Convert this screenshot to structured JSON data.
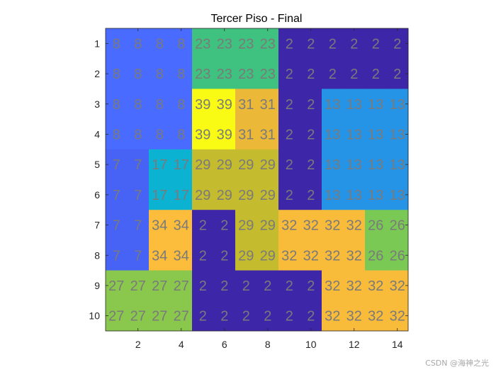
{
  "chart_data": {
    "type": "heatmap",
    "title": "Tercer Piso - Final",
    "x": [
      1,
      2,
      3,
      4,
      5,
      6,
      7,
      8,
      9,
      10,
      11,
      12,
      13,
      14
    ],
    "y": [
      1,
      2,
      3,
      4,
      5,
      6,
      7,
      8,
      9,
      10
    ],
    "xticks": [
      2,
      4,
      6,
      8,
      10,
      12,
      14
    ],
    "yticks": [
      1,
      2,
      3,
      4,
      5,
      6,
      7,
      8,
      9,
      10
    ],
    "xlim": [
      0.5,
      14.5
    ],
    "ylim": [
      0.5,
      10.5
    ],
    "y_direction": "reversed",
    "grid": false,
    "colormap": "parula",
    "values": [
      [
        8,
        8,
        8,
        8,
        23,
        23,
        23,
        23,
        2,
        2,
        2,
        2,
        2,
        2
      ],
      [
        8,
        8,
        8,
        8,
        23,
        23,
        23,
        23,
        2,
        2,
        2,
        2,
        2,
        2
      ],
      [
        8,
        8,
        8,
        8,
        39,
        39,
        31,
        31,
        2,
        2,
        13,
        13,
        13,
        13
      ],
      [
        8,
        8,
        8,
        8,
        39,
        39,
        31,
        31,
        2,
        2,
        13,
        13,
        13,
        13
      ],
      [
        7,
        7,
        17,
        17,
        29,
        29,
        29,
        29,
        2,
        2,
        13,
        13,
        13,
        13
      ],
      [
        7,
        7,
        17,
        17,
        29,
        29,
        29,
        29,
        2,
        2,
        13,
        13,
        13,
        13
      ],
      [
        7,
        7,
        34,
        34,
        2,
        2,
        29,
        29,
        32,
        32,
        32,
        32,
        26,
        26
      ],
      [
        7,
        7,
        34,
        34,
        2,
        2,
        29,
        29,
        32,
        32,
        32,
        32,
        26,
        26
      ],
      [
        27,
        27,
        27,
        27,
        2,
        2,
        2,
        2,
        2,
        2,
        32,
        32,
        32,
        32
      ],
      [
        27,
        27,
        27,
        27,
        2,
        2,
        2,
        2,
        2,
        2,
        32,
        32,
        32,
        32
      ]
    ],
    "colors": {
      "2": "#3e26a8",
      "7": "#4763f5",
      "8": "#4a6bff",
      "13": "#2694e6",
      "17": "#0bb2d2",
      "23": "#3fc27f",
      "26": "#7ac955",
      "27": "#8ac84d",
      "29": "#c4bb2e",
      "31": "#ecb837",
      "32": "#f9bb3a",
      "34": "#fbbd3b",
      "39": "#f9fb15"
    },
    "label_color": "#7a7a7a"
  },
  "watermark": "CSDN @海神之光"
}
